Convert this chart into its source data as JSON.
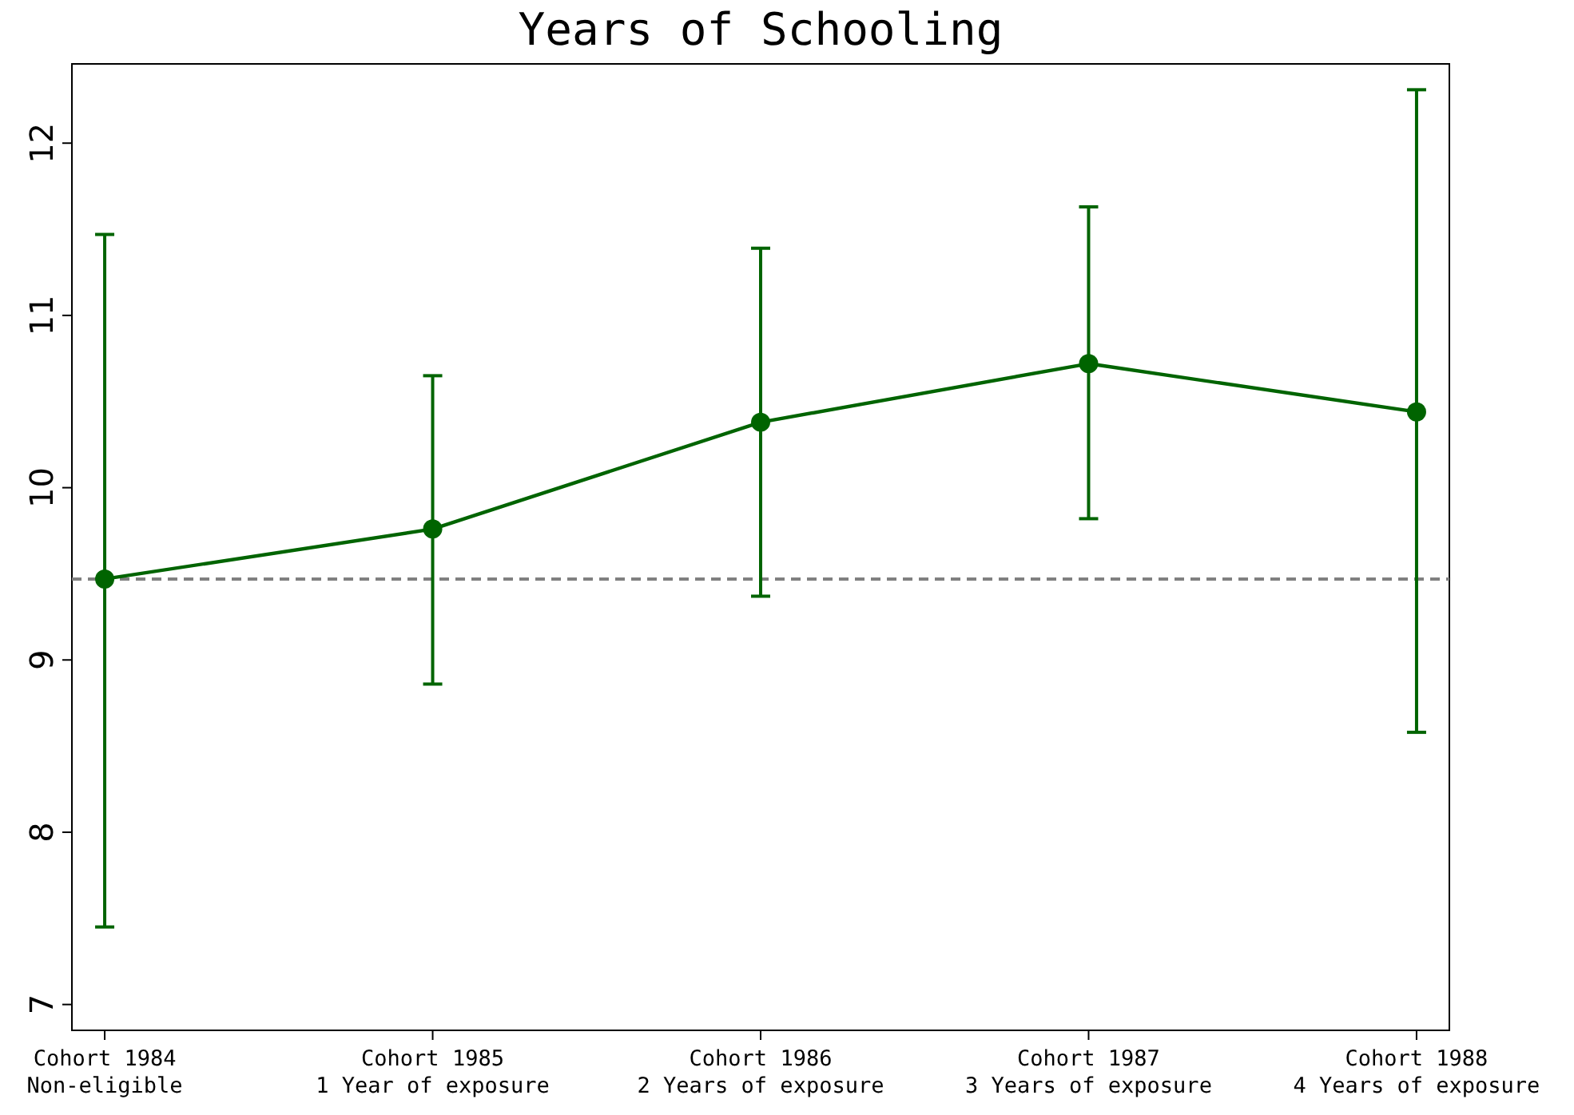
{
  "chart_data": {
    "type": "line",
    "title": "Years of Schooling",
    "categories": [
      "Cohort 1984\nNon-eligible",
      "Cohort 1985\n1 Year of exposure",
      "Cohort 1986\n2 Years of exposure",
      "Cohort 1987\n3 Years of exposure",
      "Cohort 1988\n4 Years of exposure"
    ],
    "series": [
      {
        "color": "#006400",
        "values": [
          9.47,
          9.76,
          10.38,
          10.72,
          10.44
        ],
        "errors": [
          [
            7.45,
            11.47
          ],
          [
            8.86,
            10.65
          ],
          [
            9.37,
            11.39
          ],
          [
            9.82,
            11.63
          ],
          [
            8.58,
            12.31
          ]
        ]
      }
    ],
    "ylim": [
      6.85,
      12.46
    ],
    "yticks": [
      7,
      8,
      9,
      10,
      11,
      12
    ],
    "grid": false,
    "marker": "circle",
    "line_style": "solid",
    "ref_lines": [
      {
        "axis": "y",
        "value": 9.47,
        "color": "#808080",
        "line_style": "dashed"
      }
    ]
  }
}
